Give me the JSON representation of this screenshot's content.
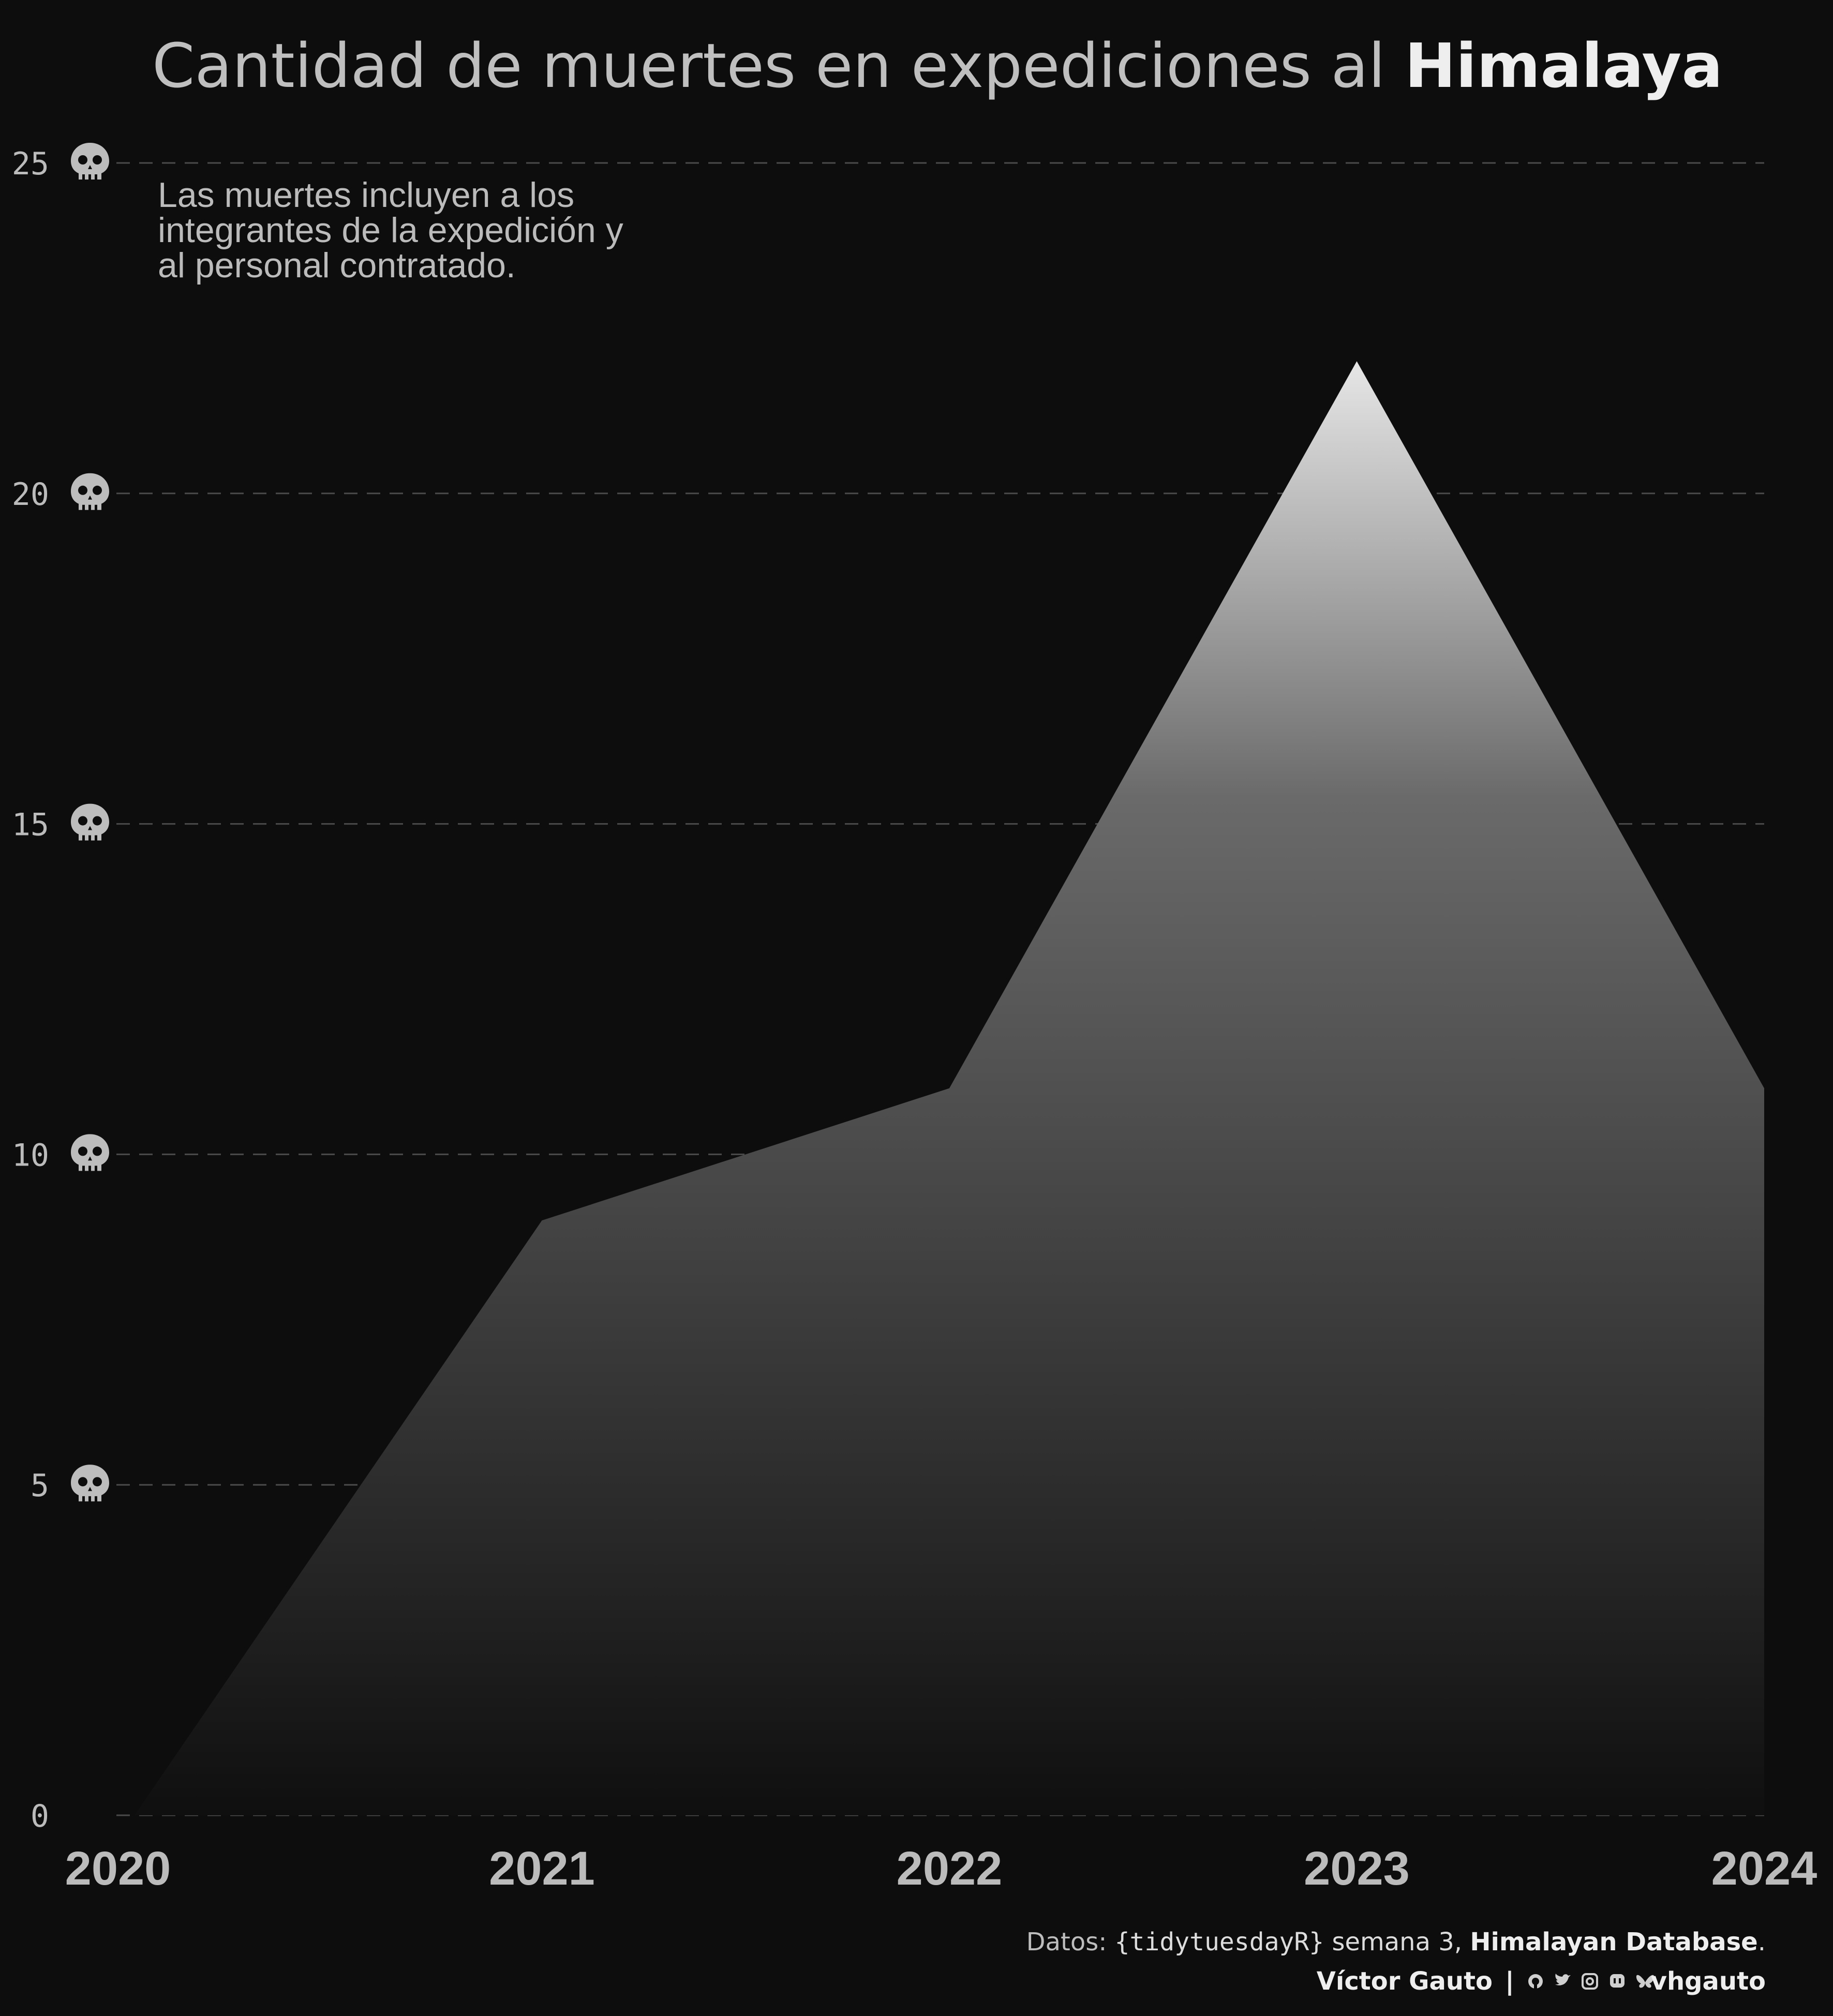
{
  "title": {
    "prefix": "Cantidad de muertes en expediciones al ",
    "emphasis": "Himalaya"
  },
  "annotation": {
    "lines": [
      "Las muertes incluyen a los",
      "integrantes de la expedición y",
      "al personal contratado."
    ]
  },
  "caption": {
    "line1": {
      "prefix": "Datos: ",
      "package": "{tidytuesdayR}",
      "middle": " semana 3, ",
      "source": "Himalayan Database",
      "suffix": "."
    },
    "line2": {
      "author": "Víctor Gauto",
      "separator": "|",
      "social_icons": [
        "github-icon",
        "twitter-icon",
        "instagram-icon",
        "mastodon-icon",
        "bluesky-icon"
      ],
      "handle": "vhgauto"
    }
  },
  "colors": {
    "background": "#0d0d0d",
    "title": "#bfbfbf",
    "title_emphasis": "#eeeeee",
    "tick": "#bbbbbb",
    "grid": "#4a4a4a",
    "skull": "#bdbdbd",
    "area_top": "#e6e6e6",
    "area_bottom": "#0f0f0f"
  },
  "chart_data": {
    "type": "area",
    "x": [
      2020,
      2021,
      2022,
      2023,
      2024
    ],
    "categories": [
      "2020",
      "2021",
      "2022",
      "2023",
      "2024"
    ],
    "values": [
      0,
      9,
      11,
      22,
      11
    ],
    "y_ticks": [
      0,
      5,
      10,
      15,
      20,
      25
    ],
    "y_tick_icon": "skull-icon",
    "ylim": [
      0,
      25
    ],
    "xlabel": "",
    "ylabel": "",
    "grid": "horizontal dashed",
    "fill": "vertical gradient light-to-dark"
  }
}
